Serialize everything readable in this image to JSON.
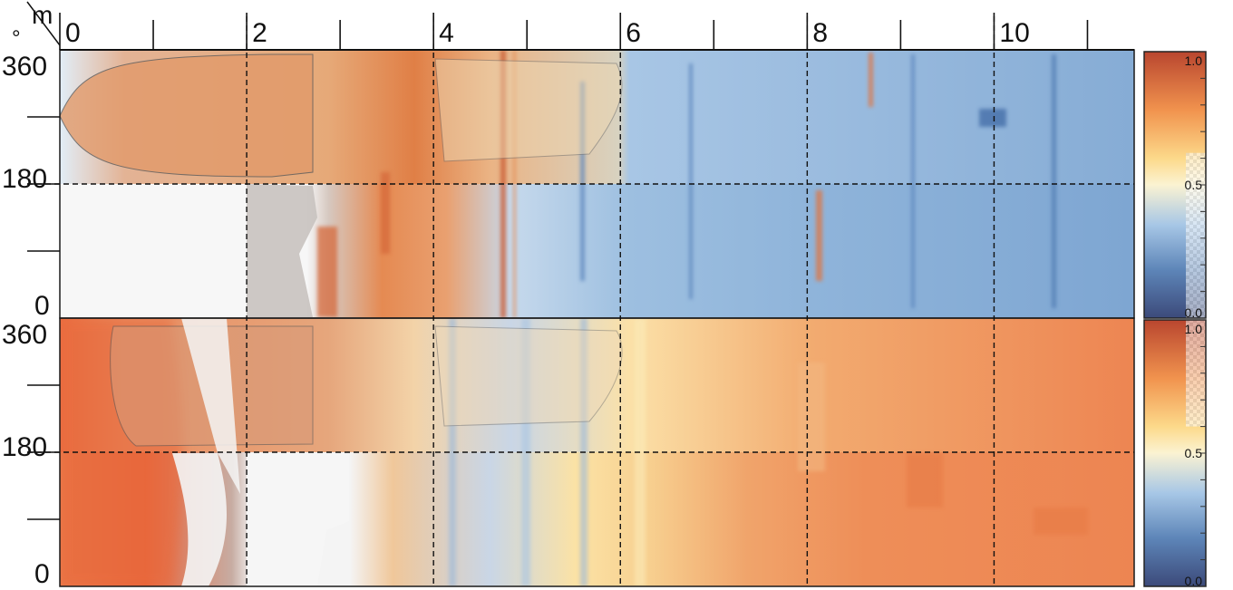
{
  "chart_data": [
    {
      "type": "heatmap",
      "panel": "top",
      "x_unit_label": "m",
      "y_unit_label": "°",
      "x_ticks": [
        "0",
        "2",
        "4",
        "6",
        "8",
        "10"
      ],
      "y_ticks": [
        "0",
        "180",
        "360"
      ],
      "xlim": [
        0,
        11.5
      ],
      "ylim": [
        0,
        360
      ],
      "grid": "dashed reference lines at x = 2, 4, 6, 8, 10 and y = 180",
      "colorbar": {
        "ticks": [
          "0.0",
          "0.5",
          "1.0"
        ],
        "range": [
          0,
          1
        ]
      },
      "description_values": {
        "x": [
          1,
          3,
          5,
          7,
          9,
          11
        ],
        "mean_value_upper_half": [
          0.85,
          0.7,
          0.5,
          0.3,
          0.3,
          0.3
        ],
        "mean_value_lower_half": [
          null,
          0.8,
          0.5,
          0.3,
          0.3,
          0.3
        ]
      },
      "colors": {
        "high": "#c8562f",
        "mid": "#fbeaa8",
        "low": "#2f5f9a"
      }
    },
    {
      "type": "heatmap",
      "panel": "bottom",
      "x_ticks": [
        "0",
        "2",
        "4",
        "6",
        "8",
        "10"
      ],
      "y_ticks": [
        "0",
        "180",
        "360"
      ],
      "xlim": [
        0,
        11.5
      ],
      "ylim": [
        0,
        360
      ],
      "grid": "dashed reference lines at x = 2, 4, 6, 8, 10 and y = 180",
      "colorbar": {
        "ticks": [
          "0.0",
          "0.5",
          "1.0"
        ],
        "range": [
          0,
          1
        ]
      },
      "description_values": {
        "x": [
          1,
          3,
          5,
          7,
          9,
          11
        ],
        "mean_value": [
          0.85,
          0.55,
          0.45,
          0.6,
          0.8,
          0.8
        ]
      },
      "colors": {
        "high": "#c8562f",
        "mid": "#fbeaa8",
        "low": "#2f5f9a"
      }
    }
  ]
}
